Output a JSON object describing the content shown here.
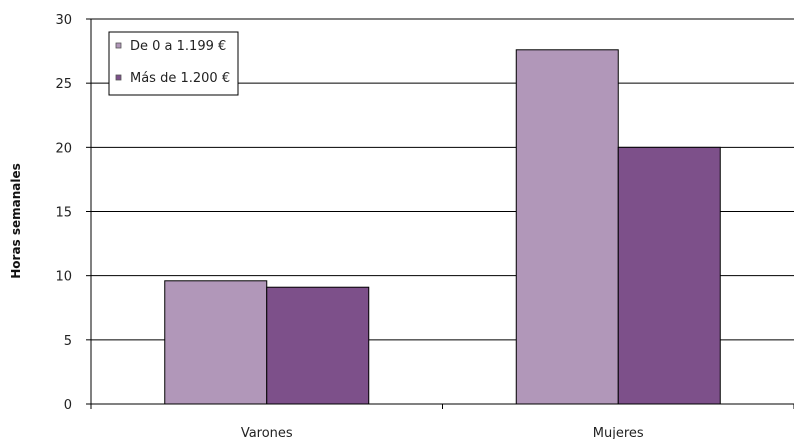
{
  "chart_data": {
    "type": "bar",
    "title": "",
    "xlabel": "",
    "ylabel": "Horas semanales",
    "categories": [
      "Varones",
      "Mujeres"
    ],
    "series": [
      {
        "name": "De 0 a 1.199 €",
        "values": [
          9.6,
          27.6
        ],
        "color": "#b197b9"
      },
      {
        "name": "Más de 1.200 €",
        "values": [
          9.1,
          20.0
        ],
        "color": "#7d508a"
      }
    ],
    "ylim": [
      0,
      30
    ],
    "yticks": [
      0,
      5,
      10,
      15,
      20,
      25,
      30
    ],
    "grid": true,
    "legend_position": "top-left"
  }
}
